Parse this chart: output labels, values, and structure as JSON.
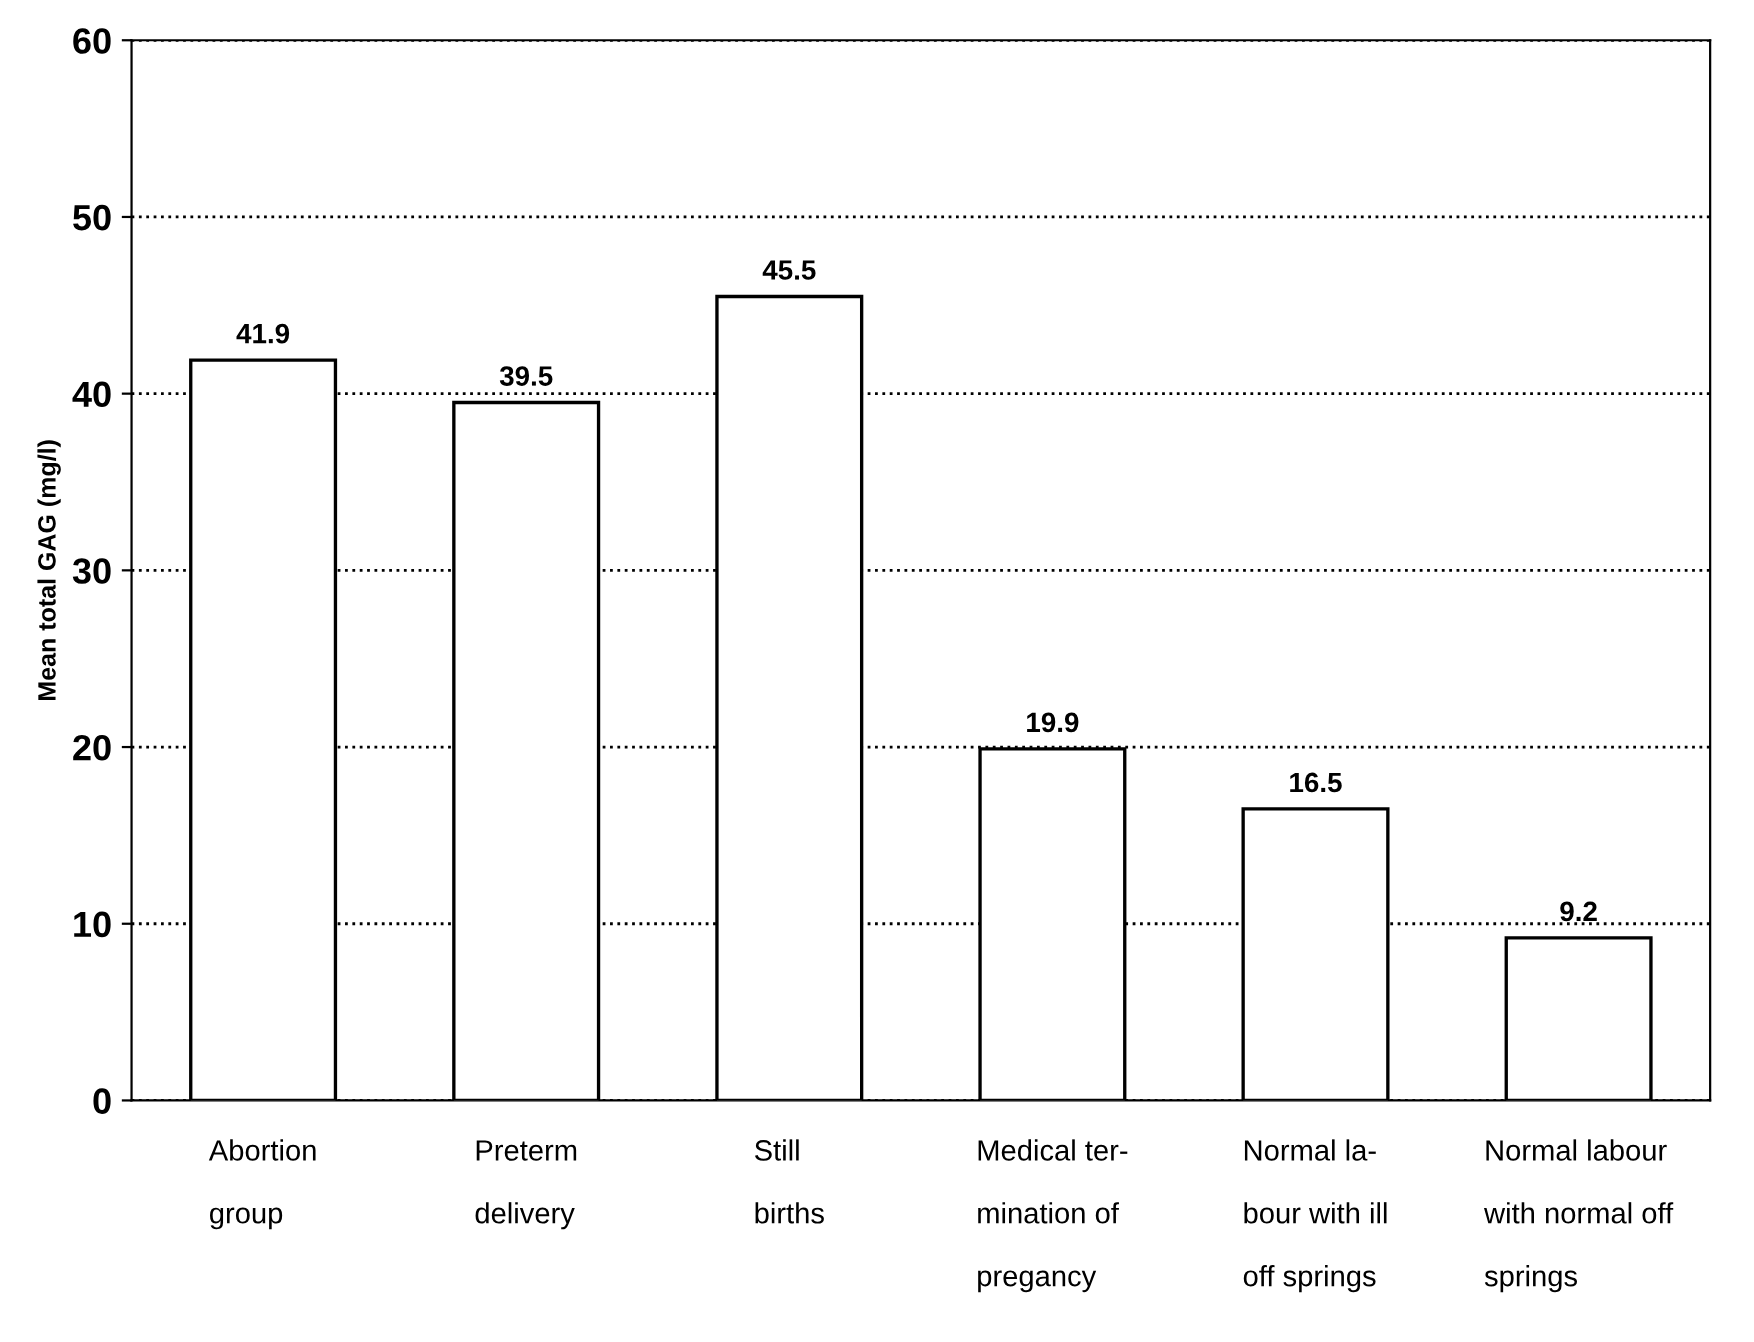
{
  "chart_data": {
    "type": "bar",
    "ylabel": "Mean total GAG (mg/l)",
    "categories": [
      "Abortion\n\ngroup",
      "Preterm\n\ndelivery",
      "Still\n\nbirths",
      "Medical ter-\n\nmination of\n\npregancy",
      "Normal la-\n\nbour with ill\n\noff springs",
      "Normal labour\n\nwith normal off\n\nsprings"
    ],
    "values": [
      41.9,
      39.5,
      45.5,
      19.9,
      16.5,
      9.2
    ],
    "color": "#ffffff",
    "data_labels": true,
    "ylim": [
      0,
      60
    ],
    "yticks": [
      0,
      10,
      20,
      30,
      40,
      50,
      60
    ],
    "grid": "y",
    "line_style": "dotted"
  }
}
